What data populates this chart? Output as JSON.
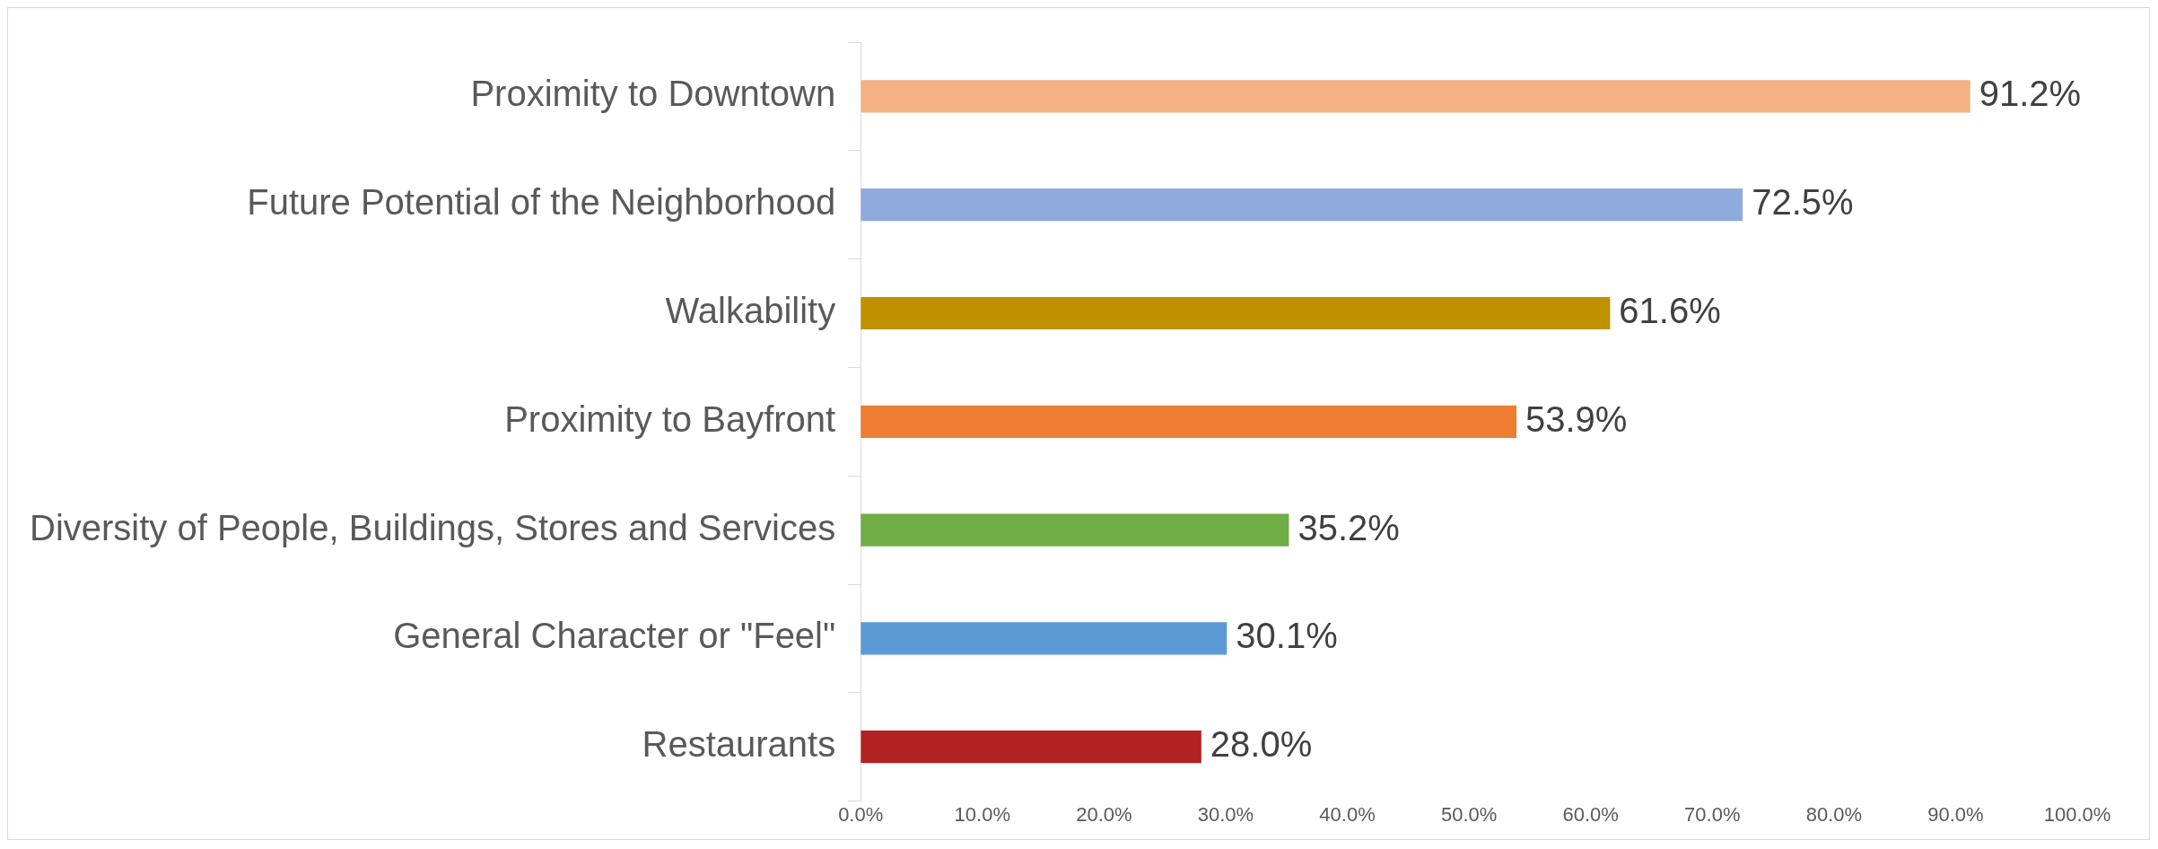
{
  "chart_data": {
    "type": "bar",
    "orientation": "horizontal",
    "categories": [
      "Proximity to Downtown",
      "Future Potential of the Neighborhood",
      "Walkability",
      "Proximity to Bayfront",
      "Diversity of People, Buildings, Stores and Services",
      "General Character or \"Feel\"",
      "Restaurants"
    ],
    "values": [
      91.2,
      72.5,
      61.6,
      53.9,
      35.2,
      30.1,
      28.0
    ],
    "colors": [
      "#f4b183",
      "#8faadc",
      "#bf9000",
      "#ed7d31",
      "#70ad47",
      "#5b9bd5",
      "#b22222"
    ],
    "value_labels": [
      "91.2%",
      "72.5%",
      "61.6%",
      "53.9%",
      "35.2%",
      "30.1%",
      "28.0%"
    ],
    "xlim": [
      0,
      100
    ],
    "xticks": [
      {
        "value": 0,
        "label": "0.0%"
      },
      {
        "value": 10,
        "label": "10.0%"
      },
      {
        "value": 20,
        "label": "20.0%"
      },
      {
        "value": 30,
        "label": "30.0%"
      },
      {
        "value": 40,
        "label": "40.0%"
      },
      {
        "value": 50,
        "label": "50.0%"
      },
      {
        "value": 60,
        "label": "60.0%"
      },
      {
        "value": 70,
        "label": "70.0%"
      },
      {
        "value": 80,
        "label": "80.0%"
      },
      {
        "value": 90,
        "label": "90.0%"
      },
      {
        "value": 100,
        "label": "100.0%"
      }
    ],
    "grid": false
  }
}
